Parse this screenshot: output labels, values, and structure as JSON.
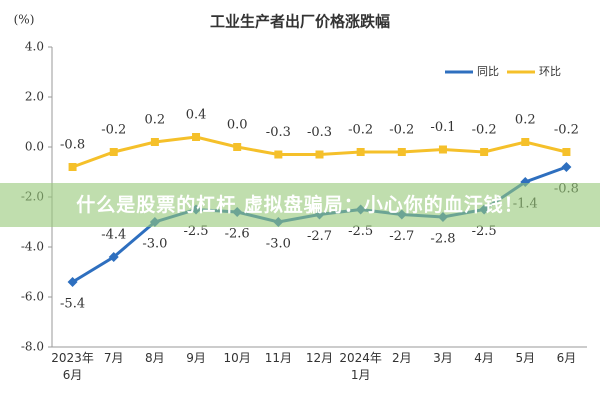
{
  "chart_data": {
    "type": "line",
    "title": "工业生产者出厂价格涨跌幅",
    "y_label": "(%)",
    "categories": [
      "2023年\n6月",
      "7月",
      "8月",
      "9月",
      "10月",
      "11月",
      "12月",
      "2024年\n1月",
      "2月",
      "3月",
      "4月",
      "5月",
      "6月"
    ],
    "series": [
      {
        "name": "同比",
        "color": "#2e6fbf",
        "values": [
          -5.4,
          -4.4,
          -3.0,
          -2.5,
          -2.6,
          -3.0,
          -2.7,
          -2.5,
          -2.7,
          -2.8,
          -2.5,
          -1.4,
          -0.8
        ],
        "value_labels": [
          "-5.4",
          "-4.4",
          "-3.0",
          "-2.5",
          "-2.6",
          "-3.0",
          "-2.7",
          "-2.5",
          "-2.7",
          "-2.8",
          "-2.5",
          "-1.4",
          "-0.8"
        ]
      },
      {
        "name": "环比",
        "color": "#f5c02a",
        "values": [
          -0.8,
          -0.2,
          0.2,
          0.4,
          0.0,
          -0.3,
          -0.3,
          -0.2,
          -0.2,
          -0.1,
          -0.2,
          0.2,
          -0.2
        ],
        "value_labels": [
          "-0.8",
          "-0.2",
          "0.2",
          "0.4",
          "0.0",
          "-0.3",
          "-0.3",
          "-0.2",
          "-0.2",
          "-0.1",
          "-0.2",
          "0.2",
          "-0.2"
        ]
      }
    ],
    "ylim": [
      -8,
      4
    ],
    "yticks": [
      {
        "value": 4,
        "label": "4.0"
      },
      {
        "value": 2,
        "label": "2.0"
      },
      {
        "value": 0,
        "label": "0.0"
      },
      {
        "value": -2,
        "label": "-2.0"
      },
      {
        "value": -4,
        "label": "-4.0"
      },
      {
        "value": -6,
        "label": "-6.0"
      },
      {
        "value": -8,
        "label": "-8.0"
      }
    ],
    "legend": "upper right",
    "banner": "什么是股票的杠杆 虚拟盘骗局：小心你的血汗钱！"
  }
}
